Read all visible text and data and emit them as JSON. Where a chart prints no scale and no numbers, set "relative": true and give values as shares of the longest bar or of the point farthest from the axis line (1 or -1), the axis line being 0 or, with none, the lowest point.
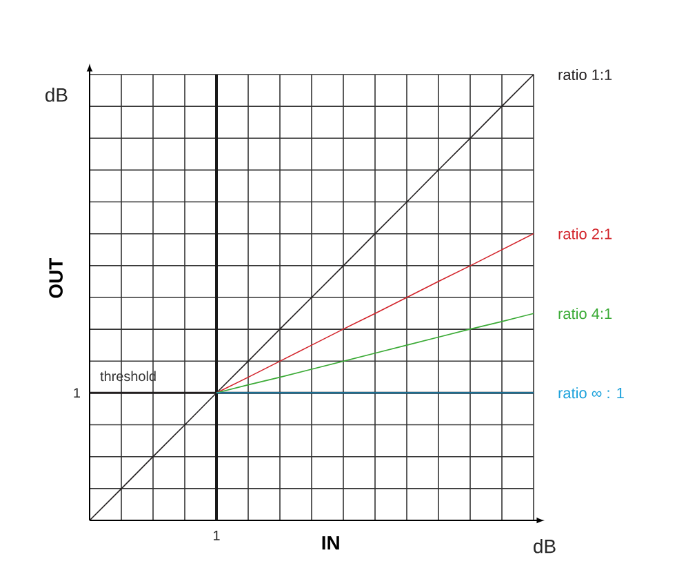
{
  "chart_data": {
    "type": "line",
    "xlabel": "IN",
    "ylabel": "OUT",
    "relative": true,
    "categories": [
      null,
      null,
      null,
      null,
      null,
      null,
      null,
      null,
      null,
      null,
      null,
      null,
      null,
      null,
      null
    ],
    "grid": true,
    "legend": false,
    "marker": "none",
    "line_style": "solid",
    "series": [
      {
        "name": "ratio  1:1",
        "color": "#231f20",
        "values": [
          0,
          0.071,
          0.143,
          0.214,
          0.286,
          0.357,
          0.429,
          0.5,
          0.571,
          0.643,
          0.714,
          0.786,
          0.857,
          0.929,
          1
        ]
      },
      {
        "name": "ratio  2:1",
        "color": "#d2232a",
        "values": [
          null,
          null,
          null,
          null,
          0.286,
          0.321,
          0.357,
          0.393,
          0.429,
          0.464,
          0.5,
          0.536,
          0.571,
          0.607,
          0.643
        ]
      },
      {
        "name": "ratio 4:1",
        "color": "#3aaa35",
        "values": [
          null,
          null,
          null,
          null,
          0.286,
          0.304,
          0.321,
          0.339,
          0.357,
          0.375,
          0.393,
          0.411,
          0.429,
          0.446,
          0.464
        ]
      },
      {
        "name": "ratio ∞ : 1",
        "color": "#1ba1db",
        "values": [
          null,
          null,
          null,
          null,
          0.286,
          0.286,
          0.286,
          0.286,
          0.286,
          0.286,
          0.286,
          0.286,
          0.286,
          0.286,
          0.286
        ]
      }
    ],
    "ref_lines": [
      {
        "axis": "y",
        "value": 0.286,
        "label": "threshold",
        "color": "#231f20"
      }
    ],
    "annotations": [
      "dB",
      "dB",
      "1",
      "1"
    ]
  }
}
